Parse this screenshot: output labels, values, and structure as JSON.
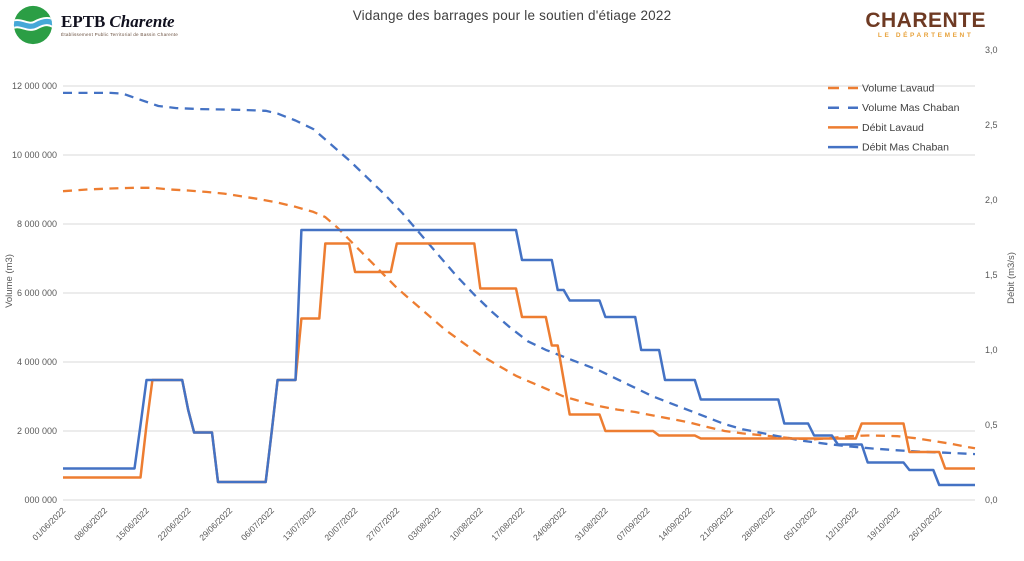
{
  "header": {
    "logo_eptb": {
      "acronym": "EPTB",
      "name": "Charente",
      "subtitle": "Établissement Public Territorial de Bassin Charente"
    },
    "logo_dept": {
      "line1": "CHARENTE",
      "line2": "LE DÉPARTEMENT"
    }
  },
  "colors": {
    "orange": "#ED7D31",
    "blue": "#4472C4",
    "gridline": "#D9D9D9",
    "axis_text": "#595959",
    "title_text": "#404040",
    "legend_text": "#3f3f3f"
  },
  "chart_data": {
    "type": "line",
    "title": "Vidange des barrages pour le soutien d'étiage 2022",
    "x_axis": {
      "unit": "date (daily points, weekly ticks)",
      "tick_labels": [
        "01/06/2022",
        "08/06/2022",
        "15/06/2022",
        "22/06/2022",
        "29/06/2022",
        "06/07/2022",
        "13/07/2022",
        "20/07/2022",
        "27/07/2022",
        "03/08/2022",
        "10/08/2022",
        "17/08/2022",
        "24/08/2022",
        "31/08/2022",
        "07/09/2022",
        "14/09/2022",
        "21/09/2022",
        "28/09/2022",
        "05/10/2022",
        "12/10/2022",
        "19/10/2022",
        "26/10/2022"
      ],
      "days_span": 153
    },
    "y_left": {
      "label": "Volume (m3)",
      "tick_labels": [
        "000 000",
        "2 000 000",
        "4 000 000",
        "6 000 000",
        "8 000 000",
        "10 000 000",
        "12 000 000"
      ],
      "tick_values": [
        0,
        2000000,
        4000000,
        6000000,
        8000000,
        10000000,
        12000000
      ],
      "grid": true
    },
    "y_right": {
      "label": "Débit (m3/s)",
      "tick_labels": [
        "0,0",
        "0,5",
        "1,0",
        "1,5",
        "2,0",
        "2,5",
        "3,0"
      ],
      "tick_values": [
        0,
        0.5,
        1.0,
        1.5,
        2.0,
        2.5,
        3.0
      ],
      "range": [
        0,
        3
      ]
    },
    "legend": [
      {
        "label": "Volume Lavaud",
        "color": "#ED7D31",
        "dash": true
      },
      {
        "label": "Volume Mas Chaban",
        "color": "#4472C4",
        "dash": true
      },
      {
        "label": "Débit Lavaud",
        "color": "#ED7D31",
        "dash": false
      },
      {
        "label": "Débit Mas Chaban",
        "color": "#4472C4",
        "dash": false
      }
    ],
    "series": [
      {
        "id": "volume-lavaud",
        "name": "Volume Lavaud",
        "axis": "left",
        "style": "dashed",
        "color": "#ED7D31",
        "points_day_m3": [
          [
            0,
            8950000
          ],
          [
            4,
            9000000
          ],
          [
            8,
            9030000
          ],
          [
            12,
            9050000
          ],
          [
            15,
            9050000
          ],
          [
            18,
            9000000
          ],
          [
            21,
            8970000
          ],
          [
            24,
            8930000
          ],
          [
            27,
            8880000
          ],
          [
            30,
            8800000
          ],
          [
            33,
            8720000
          ],
          [
            36,
            8620000
          ],
          [
            39,
            8500000
          ],
          [
            42,
            8350000
          ],
          [
            44,
            8200000
          ],
          [
            46,
            7900000
          ],
          [
            48,
            7550000
          ],
          [
            50,
            7200000
          ],
          [
            52,
            6850000
          ],
          [
            54,
            6500000
          ],
          [
            56,
            6150000
          ],
          [
            58,
            5850000
          ],
          [
            60,
            5550000
          ],
          [
            62,
            5250000
          ],
          [
            64,
            4950000
          ],
          [
            66,
            4700000
          ],
          [
            68,
            4450000
          ],
          [
            70,
            4200000
          ],
          [
            72,
            4000000
          ],
          [
            74,
            3800000
          ],
          [
            76,
            3600000
          ],
          [
            78,
            3450000
          ],
          [
            80,
            3300000
          ],
          [
            82,
            3150000
          ],
          [
            84,
            3000000
          ],
          [
            86,
            2900000
          ],
          [
            88,
            2800000
          ],
          [
            90,
            2720000
          ],
          [
            93,
            2620000
          ],
          [
            96,
            2550000
          ],
          [
            99,
            2450000
          ],
          [
            102,
            2350000
          ],
          [
            105,
            2250000
          ],
          [
            108,
            2120000
          ],
          [
            111,
            2000000
          ],
          [
            114,
            1930000
          ],
          [
            117,
            1880000
          ],
          [
            120,
            1830000
          ],
          [
            123,
            1780000
          ],
          [
            126,
            1760000
          ],
          [
            129,
            1800000
          ],
          [
            132,
            1850000
          ],
          [
            135,
            1870000
          ],
          [
            138,
            1860000
          ],
          [
            140,
            1850000
          ],
          [
            143,
            1790000
          ],
          [
            146,
            1710000
          ],
          [
            149,
            1630000
          ],
          [
            151,
            1560000
          ],
          [
            153,
            1500000
          ]
        ]
      },
      {
        "id": "volume-mas-chaban",
        "name": "Volume Mas Chaban",
        "axis": "left",
        "style": "dashed",
        "color": "#4472C4",
        "points_day_m3": [
          [
            0,
            11800000
          ],
          [
            8,
            11800000
          ],
          [
            10,
            11780000
          ],
          [
            13,
            11600000
          ],
          [
            16,
            11420000
          ],
          [
            19,
            11360000
          ],
          [
            23,
            11330000
          ],
          [
            27,
            11320000
          ],
          [
            31,
            11300000
          ],
          [
            34,
            11280000
          ],
          [
            36,
            11200000
          ],
          [
            39,
            11000000
          ],
          [
            42,
            10750000
          ],
          [
            45,
            10300000
          ],
          [
            48,
            9850000
          ],
          [
            51,
            9350000
          ],
          [
            54,
            8850000
          ],
          [
            57,
            8300000
          ],
          [
            60,
            7700000
          ],
          [
            63,
            7100000
          ],
          [
            66,
            6500000
          ],
          [
            69,
            5950000
          ],
          [
            72,
            5450000
          ],
          [
            75,
            5000000
          ],
          [
            78,
            4600000
          ],
          [
            81,
            4350000
          ],
          [
            84,
            4150000
          ],
          [
            87,
            3950000
          ],
          [
            90,
            3750000
          ],
          [
            93,
            3500000
          ],
          [
            96,
            3250000
          ],
          [
            99,
            3000000
          ],
          [
            102,
            2800000
          ],
          [
            105,
            2600000
          ],
          [
            108,
            2400000
          ],
          [
            111,
            2200000
          ],
          [
            114,
            2050000
          ],
          [
            117,
            1950000
          ],
          [
            120,
            1850000
          ],
          [
            124,
            1720000
          ],
          [
            128,
            1630000
          ],
          [
            132,
            1550000
          ],
          [
            136,
            1490000
          ],
          [
            140,
            1440000
          ],
          [
            144,
            1400000
          ],
          [
            148,
            1370000
          ],
          [
            153,
            1330000
          ]
        ]
      },
      {
        "id": "debit-lavaud",
        "name": "Débit Lavaud",
        "axis": "right",
        "style": "solid",
        "color": "#ED7D31",
        "steps_day_m3s": [
          [
            0,
            13,
            0.15
          ],
          [
            14,
            14,
            0.5
          ],
          [
            15,
            20,
            0.8
          ],
          [
            21,
            21,
            0.6
          ],
          [
            22,
            25,
            0.45
          ],
          [
            26,
            34,
            0.12
          ],
          [
            35,
            35,
            0.45
          ],
          [
            36,
            39,
            0.8
          ],
          [
            40,
            43,
            1.21
          ],
          [
            44,
            48,
            1.71
          ],
          [
            49,
            55,
            1.52
          ],
          [
            56,
            69,
            1.71
          ],
          [
            70,
            76,
            1.41
          ],
          [
            77,
            81,
            1.22
          ],
          [
            82,
            83,
            1.03
          ],
          [
            84,
            84,
            0.8
          ],
          [
            85,
            90,
            0.57
          ],
          [
            91,
            99,
            0.46
          ],
          [
            100,
            106,
            0.43
          ],
          [
            107,
            133,
            0.41
          ],
          [
            134,
            141,
            0.51
          ],
          [
            142,
            147,
            0.32
          ],
          [
            148,
            153,
            0.21
          ]
        ]
      },
      {
        "id": "debit-mas-chaban",
        "name": "Débit Mas Chaban",
        "axis": "right",
        "style": "solid",
        "color": "#4472C4",
        "steps_day_m3s": [
          [
            0,
            12,
            0.21
          ],
          [
            13,
            13,
            0.5
          ],
          [
            14,
            20,
            0.8
          ],
          [
            21,
            21,
            0.6
          ],
          [
            22,
            25,
            0.45
          ],
          [
            26,
            34,
            0.12
          ],
          [
            35,
            35,
            0.45
          ],
          [
            36,
            39,
            0.8
          ],
          [
            40,
            76,
            1.8
          ],
          [
            77,
            82,
            1.6
          ],
          [
            83,
            84,
            1.4
          ],
          [
            85,
            90,
            1.33
          ],
          [
            91,
            96,
            1.22
          ],
          [
            97,
            100,
            1.0
          ],
          [
            101,
            106,
            0.8
          ],
          [
            107,
            120,
            0.67
          ],
          [
            121,
            125,
            0.51
          ],
          [
            126,
            129,
            0.43
          ],
          [
            130,
            134,
            0.37
          ],
          [
            135,
            141,
            0.25
          ],
          [
            142,
            146,
            0.2
          ],
          [
            147,
            153,
            0.1
          ]
        ]
      }
    ]
  }
}
